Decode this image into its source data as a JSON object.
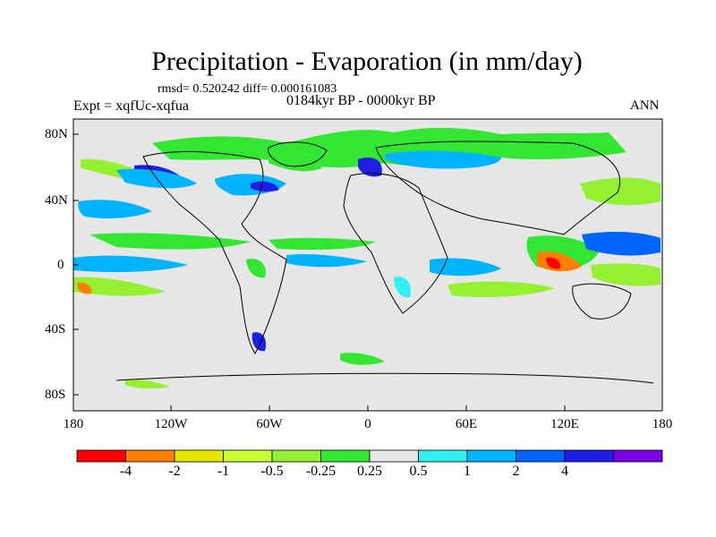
{
  "title": "Precipitation - Evaporation (in mm/day)",
  "stats": "rmsd= 0.520242 diff= 0.000161083",
  "experiment": "Expt = xqfUc-xqfua",
  "period": "0184kyr BP - 0000kyr BP",
  "season": "ANN",
  "map": {
    "lat_ticks": [
      "80N",
      "40N",
      "0",
      "40S",
      "80S"
    ],
    "lon_ticks": [
      "180",
      "120W",
      "60W",
      "0",
      "60E",
      "120E",
      "180"
    ],
    "background_color": "#e6e6e6"
  },
  "colorbar": {
    "colors": [
      "#ff0000",
      "#ff8000",
      "#e6e600",
      "#c8ff32",
      "#96f032",
      "#32e632",
      "#e6e6e6",
      "#32f0f0",
      "#00b4ff",
      "#0064ff",
      "#1e1ee6",
      "#7b00e6"
    ],
    "labels": [
      "-4",
      "-2",
      "-1",
      "-0.5",
      "-0.25",
      "0.25",
      "0.5",
      "1",
      "2",
      "4"
    ]
  }
}
